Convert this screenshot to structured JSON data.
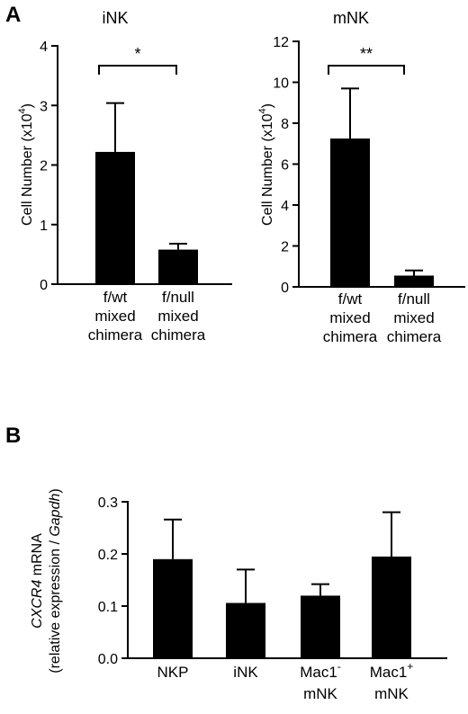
{
  "panels": {
    "a": {
      "letter": "A"
    },
    "b": {
      "letter": "B"
    }
  },
  "chart_data": [
    {
      "type": "bar",
      "title": "iNK",
      "ylabel": "Cell Number (x10^4)",
      "ylabel_parts": {
        "base": "Cell Number (x10",
        "sup": "4",
        "end": ")"
      },
      "categories": [
        [
          "f/wt",
          "mixed",
          "chimera"
        ],
        [
          "f/null",
          "mixed",
          "chimera"
        ]
      ],
      "values": [
        2.22,
        0.58
      ],
      "errors": [
        0.82,
        0.1
      ],
      "ylim": [
        0,
        4
      ],
      "yticks": [
        "0",
        "1",
        "2",
        "3",
        "4"
      ],
      "significance": "*",
      "grid": false
    },
    {
      "type": "bar",
      "title": "mNK",
      "ylabel": "Cell Number (x10^4)",
      "ylabel_parts": {
        "base": "Cell Number (x10",
        "sup": "4",
        "end": ")"
      },
      "categories": [
        [
          "f/wt",
          "mixed",
          "chimera"
        ],
        [
          "f/null",
          "mixed",
          "chimera"
        ]
      ],
      "values": [
        7.25,
        0.55
      ],
      "errors": [
        2.45,
        0.25
      ],
      "ylim": [
        0,
        12
      ],
      "yticks": [
        "0",
        "2",
        "4",
        "6",
        "8",
        "10",
        "12"
      ],
      "significance": "**",
      "grid": false
    },
    {
      "type": "bar",
      "title": "",
      "ylabel": "CXCR4 mRNA (relative expression / Gapdh)",
      "ylabel_parts": {
        "line1_gene": "CXCR4",
        "line1_rest": " mRNA",
        "line2_start": "(relative expression / ",
        "line2_gene": "Gapdh",
        "line2_end": ")"
      },
      "categories": [
        [
          "NKP"
        ],
        [
          "iNK"
        ],
        [
          "Mac1",
          "mNK"
        ],
        [
          "Mac1",
          "mNK"
        ]
      ],
      "category_superscripts": [
        "",
        "",
        "-",
        "+"
      ],
      "values": [
        0.19,
        0.106,
        0.12,
        0.195
      ],
      "errors": [
        0.076,
        0.064,
        0.022,
        0.085
      ],
      "ylim": [
        0,
        0.3
      ],
      "yticks": [
        "0.0",
        "0.1",
        "0.2",
        "0.3"
      ],
      "grid": false
    }
  ]
}
